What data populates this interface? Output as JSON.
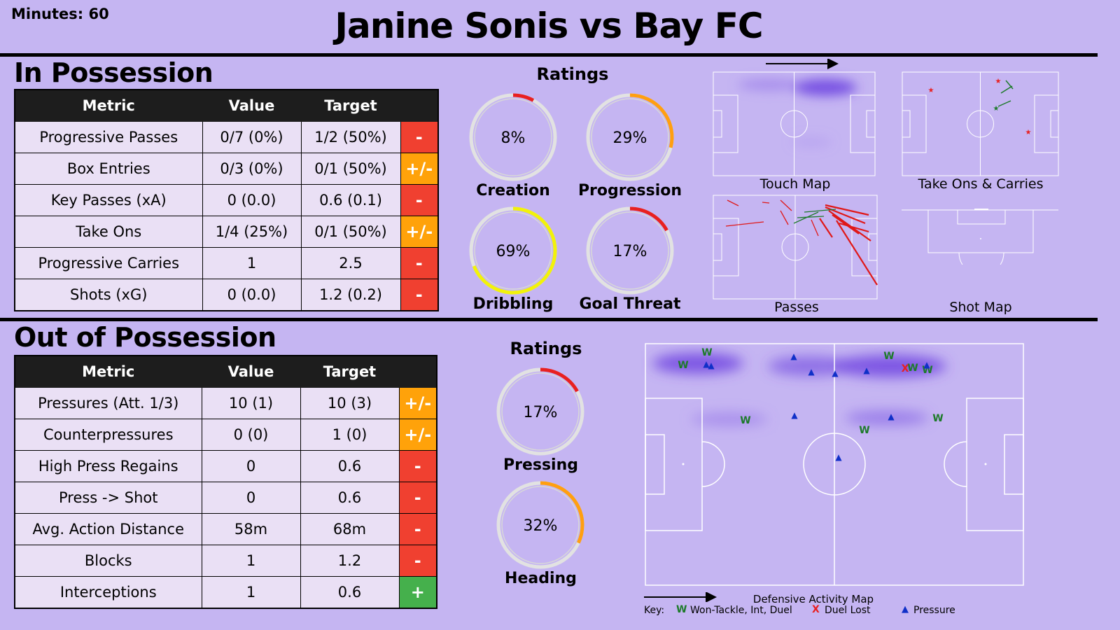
{
  "header": {
    "minutes": "Minutes: 60",
    "title": "Janine Sonis vs Bay FC"
  },
  "in_possession": {
    "title": "In Possession",
    "columns": [
      "Metric",
      "Value",
      "Target",
      ""
    ],
    "rows": [
      {
        "metric": "Progressive Passes",
        "value": "0/7 (0%)",
        "target": "1/2 (50%)",
        "grade": "-",
        "color": "#f04030"
      },
      {
        "metric": "Box Entries",
        "value": "0/3 (0%)",
        "target": "0/1 (50%)",
        "grade": "+/-",
        "color": "#ffa20a"
      },
      {
        "metric": "Key Passes (xA)",
        "value": "0 (0.0)",
        "target": "0.6 (0.1)",
        "grade": "-",
        "color": "#f04030"
      },
      {
        "metric": "Take Ons",
        "value": "1/4 (25%)",
        "target": "0/1 (50%)",
        "grade": "+/-",
        "color": "#ffa20a"
      },
      {
        "metric": "Progressive Carries",
        "value": "1",
        "target": "2.5",
        "grade": "-",
        "color": "#f04030"
      },
      {
        "metric": "Shots (xG)",
        "value": "0 (0.0)",
        "target": "1.2 (0.2)",
        "grade": "-",
        "color": "#f04030"
      }
    ],
    "ratings_title": "Ratings",
    "ratings": [
      {
        "label": "Creation",
        "pct": "8%",
        "value": 8,
        "color": "#e82020"
      },
      {
        "label": "Progression",
        "pct": "29%",
        "value": 29,
        "color": "#ff9f10"
      },
      {
        "label": "Dribbling",
        "pct": "69%",
        "value": 69,
        "color": "#f2f20a"
      },
      {
        "label": "Goal Threat",
        "pct": "17%",
        "value": 17,
        "color": "#e82020"
      }
    ],
    "maps": {
      "touch": "Touch Map",
      "takeons": "Take Ons & Carries",
      "passes": "Passes",
      "shots": "Shot Map"
    }
  },
  "out_of_possession": {
    "title": "Out of Possession",
    "columns": [
      "Metric",
      "Value",
      "Target",
      ""
    ],
    "rows": [
      {
        "metric": "Pressures (Att. 1/3)",
        "value": "10 (1)",
        "target": "10 (3)",
        "grade": "+/-",
        "color": "#ffa20a"
      },
      {
        "metric": "Counterpressures",
        "value": "0 (0)",
        "target": "1 (0)",
        "grade": "+/-",
        "color": "#ffa20a"
      },
      {
        "metric": "High Press Regains",
        "value": "0",
        "target": "0.6",
        "grade": "-",
        "color": "#f04030"
      },
      {
        "metric": "Press -> Shot",
        "value": "0",
        "target": "0.6",
        "grade": "-",
        "color": "#f04030"
      },
      {
        "metric": "Avg. Action Distance",
        "value": "58m",
        "target": "68m",
        "grade": "-",
        "color": "#f04030"
      },
      {
        "metric": "Blocks",
        "value": "1",
        "target": "1.2",
        "grade": "-",
        "color": "#f04030"
      },
      {
        "metric": "Interceptions",
        "value": "1",
        "target": "0.6",
        "grade": "+",
        "color": "#45b04c"
      }
    ],
    "ratings_title": "Ratings",
    "ratings": [
      {
        "label": "Pressing",
        "pct": "17%",
        "value": 17,
        "color": "#e82020"
      },
      {
        "label": "Heading",
        "pct": "32%",
        "value": 32,
        "color": "#ff9f10"
      }
    ],
    "map_title": "Defensive Activity Map",
    "key": {
      "label": "Key:",
      "won": "Won-Tackle, Int, Duel",
      "lost": "Duel Lost",
      "pressure": "Pressure",
      "won_symbol": "W",
      "lost_symbol": "X",
      "pressure_symbol": "▲"
    }
  },
  "chart_data": [
    {
      "type": "table",
      "title": "In Possession",
      "columns": [
        "Metric",
        "Value",
        "Target"
      ],
      "rows": [
        [
          "Progressive Passes",
          "0/7 (0%)",
          "1/2 (50%)"
        ],
        [
          "Box Entries",
          "0/3 (0%)",
          "0/1 (50%)"
        ],
        [
          "Key Passes (xA)",
          "0 (0.0)",
          "0.6 (0.1)"
        ],
        [
          "Take Ons",
          "1/4 (25%)",
          "0/1 (50%)"
        ],
        [
          "Progressive Carries",
          "1",
          "2.5"
        ],
        [
          "Shots (xG)",
          "0 (0.0)",
          "1.2 (0.2)"
        ]
      ]
    },
    {
      "type": "pie",
      "title": "Ratings",
      "categories": [
        "Creation",
        "Progression",
        "Dribbling",
        "Goal Threat"
      ],
      "values": [
        8,
        29,
        69,
        17
      ]
    },
    {
      "type": "table",
      "title": "Out of Possession",
      "columns": [
        "Metric",
        "Value",
        "Target"
      ],
      "rows": [
        [
          "Pressures (Att. 1/3)",
          "10 (1)",
          "10 (3)"
        ],
        [
          "Counterpressures",
          "0 (0)",
          "1 (0)"
        ],
        [
          "High Press Regains",
          "0",
          "0.6"
        ],
        [
          "Press -> Shot",
          "0",
          "0.6"
        ],
        [
          "Avg. Action Distance",
          "58m",
          "68m"
        ],
        [
          "Blocks",
          "1",
          "1.2"
        ],
        [
          "Interceptions",
          "1",
          "0.6"
        ]
      ]
    },
    {
      "type": "pie",
      "title": "Ratings",
      "categories": [
        "Pressing",
        "Heading"
      ],
      "values": [
        17,
        32
      ]
    }
  ]
}
